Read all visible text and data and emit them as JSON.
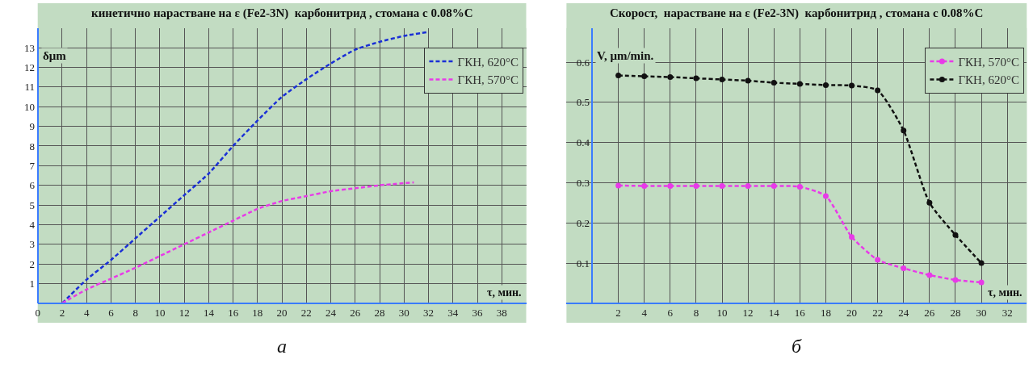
{
  "chart_data": [
    {
      "type": "line",
      "title": "кинетично нарастване на ε (Fe2-3N)  карбонитрид , стомана с 0.08%C",
      "xlabel": "τ, мин.",
      "ylabel": "δμm",
      "annotations": [
        "а"
      ],
      "xlim": [
        0,
        40
      ],
      "xticks": [
        0,
        2,
        4,
        6,
        8,
        10,
        12,
        14,
        16,
        18,
        20,
        22,
        24,
        26,
        28,
        30,
        32,
        34,
        36,
        38
      ],
      "ylim": [
        0,
        14
      ],
      "yticks": [
        1,
        2,
        3,
        4,
        5,
        6,
        7,
        8,
        9,
        10,
        11,
        12,
        13
      ],
      "grid": true,
      "legend": "top right",
      "line_style": "dashed",
      "series": [
        {
          "name": "ГКН, 620°C",
          "color": "#1a2fd6",
          "x": [
            2,
            4,
            6,
            8,
            10,
            12,
            14,
            16,
            18,
            20,
            22,
            24,
            26,
            28,
            30,
            32
          ],
          "values": [
            0,
            1.2,
            2.2,
            3.3,
            4.4,
            5.5,
            6.6,
            8.0,
            9.3,
            10.5,
            11.4,
            12.2,
            12.9,
            13.3,
            13.6,
            13.8
          ]
        },
        {
          "name": "ГКН, 570°C",
          "color": "#e83ae8",
          "x": [
            2,
            4,
            6,
            8,
            10,
            12,
            14,
            16,
            18,
            20,
            22,
            24,
            26,
            28,
            30.8
          ],
          "values": [
            0,
            0.7,
            1.25,
            1.8,
            2.4,
            3.0,
            3.6,
            4.2,
            4.8,
            5.2,
            5.45,
            5.7,
            5.85,
            6.0,
            6.15
          ]
        }
      ]
    },
    {
      "type": "line",
      "title": "Скорост,  нарастване на ε (Fe2-3N)  карбонитрид , стомана с 0.08%C",
      "xlabel": "τ, мин.",
      "ylabel": "V, μm/min.",
      "annotations": [
        "б"
      ],
      "xlim": [
        -2,
        33.5
      ],
      "xticks": [
        2,
        4,
        6,
        8,
        10,
        12,
        14,
        16,
        18,
        20,
        22,
        24,
        26,
        28,
        30,
        32
      ],
      "ylim": [
        0,
        0.685
      ],
      "yticks": [
        0.1,
        0.2,
        0.3,
        0.4,
        0.5,
        0.6
      ],
      "grid": true,
      "legend": "top right",
      "line_style": "dashed",
      "marker": "circle",
      "series": [
        {
          "name": "ГКН, 570°C",
          "color": "#e83ae8",
          "x": [
            2,
            4,
            6,
            8,
            10,
            12,
            14,
            16,
            18,
            20,
            22,
            24,
            26,
            28,
            30
          ],
          "values": [
            0.293,
            0.292,
            0.292,
            0.292,
            0.292,
            0.292,
            0.292,
            0.29,
            0.267,
            0.165,
            0.108,
            0.087,
            0.07,
            0.058,
            0.052
          ]
        },
        {
          "name": "ГКН, 620°C",
          "color": "#111111",
          "x": [
            2,
            4,
            6,
            8,
            10,
            12,
            14,
            16,
            18,
            20,
            22,
            24,
            26,
            28,
            30
          ],
          "values": [
            0.567,
            0.565,
            0.563,
            0.56,
            0.557,
            0.554,
            0.549,
            0.546,
            0.543,
            0.542,
            0.53,
            0.43,
            0.25,
            0.17,
            0.1
          ]
        }
      ]
    }
  ]
}
